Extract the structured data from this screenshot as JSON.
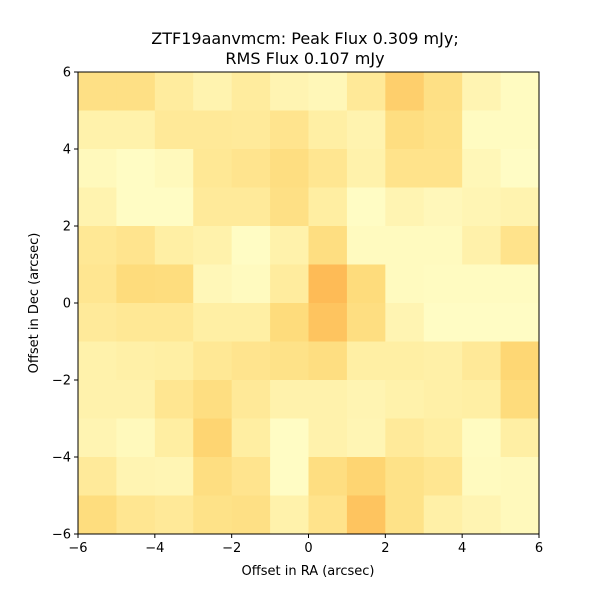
{
  "chart_data": {
    "type": "heatmap",
    "title": "ZTF19aanvmcm: Peak Flux 0.309 mJy;\nRMS Flux 0.107 mJy",
    "title_lines": [
      "ZTF19aanvmcm: Peak Flux 0.309 mJy;",
      "RMS Flux 0.107 mJy"
    ],
    "xlabel": "Offset in RA (arcsec)",
    "ylabel": "Offset in Dec (arcsec)",
    "xlim": [
      -6,
      6
    ],
    "ylim": [
      -6,
      6
    ],
    "xticks": [
      -6,
      -4,
      -2,
      0,
      2,
      4,
      6
    ],
    "yticks": [
      -6,
      -4,
      -2,
      0,
      2,
      4,
      6
    ],
    "xtick_labels": [
      "−6",
      "−4",
      "−2",
      "0",
      "2",
      "4",
      "6"
    ],
    "ytick_labels": [
      "−6",
      "−4",
      "−2",
      "0",
      "2",
      "4",
      "6"
    ],
    "grid": false,
    "colormap": "YlOrRd",
    "colormap_colors": [
      "#ffffcc",
      "#ffeda0",
      "#fed976",
      "#feb24c"
    ],
    "cell_size_arcsec": 1,
    "rows_order": "top-to-bottom (Dec +6 to -6)",
    "values": [
      [
        0.55,
        0.55,
        0.35,
        0.22,
        0.35,
        0.2,
        0.15,
        0.4,
        0.75,
        0.55,
        0.2,
        0.08
      ],
      [
        0.25,
        0.25,
        0.4,
        0.4,
        0.38,
        0.48,
        0.3,
        0.22,
        0.58,
        0.52,
        0.08,
        0.08
      ],
      [
        0.12,
        0.06,
        0.12,
        0.42,
        0.48,
        0.58,
        0.45,
        0.25,
        0.5,
        0.5,
        0.15,
        0.05
      ],
      [
        0.22,
        0.06,
        0.06,
        0.38,
        0.38,
        0.55,
        0.32,
        0.06,
        0.2,
        0.14,
        0.18,
        0.22
      ],
      [
        0.42,
        0.48,
        0.3,
        0.25,
        0.06,
        0.25,
        0.58,
        0.1,
        0.1,
        0.1,
        0.26,
        0.5
      ],
      [
        0.45,
        0.62,
        0.6,
        0.15,
        0.1,
        0.35,
        0.92,
        0.62,
        0.1,
        0.08,
        0.08,
        0.08
      ],
      [
        0.38,
        0.42,
        0.42,
        0.3,
        0.3,
        0.62,
        0.85,
        0.58,
        0.2,
        0.06,
        0.06,
        0.06
      ],
      [
        0.25,
        0.28,
        0.3,
        0.42,
        0.48,
        0.52,
        0.58,
        0.3,
        0.3,
        0.28,
        0.4,
        0.68
      ],
      [
        0.24,
        0.24,
        0.45,
        0.58,
        0.4,
        0.24,
        0.24,
        0.2,
        0.25,
        0.28,
        0.3,
        0.62
      ],
      [
        0.2,
        0.12,
        0.32,
        0.7,
        0.32,
        0.06,
        0.24,
        0.18,
        0.38,
        0.32,
        0.08,
        0.3
      ],
      [
        0.38,
        0.2,
        0.18,
        0.58,
        0.48,
        0.06,
        0.58,
        0.7,
        0.52,
        0.45,
        0.1,
        0.12
      ],
      [
        0.6,
        0.45,
        0.4,
        0.52,
        0.55,
        0.25,
        0.5,
        0.85,
        0.52,
        0.28,
        0.2,
        0.12
      ]
    ]
  }
}
